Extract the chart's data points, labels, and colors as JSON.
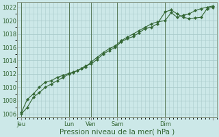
{
  "title": "Pression niveau de la mer( hPa )",
  "bg_color": "#cce8e8",
  "grid_color": "#aacccc",
  "line_color": "#336633",
  "ylim": [
    1005.5,
    1022.8
  ],
  "yticks": [
    1006,
    1008,
    1010,
    1012,
    1014,
    1016,
    1018,
    1020,
    1022
  ],
  "xlim": [
    0,
    100
  ],
  "xtick_positions": [
    2,
    26,
    37,
    50,
    74,
    98
  ],
  "xtick_labels": [
    "Jeu",
    "Lun",
    "Ven",
    "Sam",
    "Dim",
    ""
  ],
  "vline_positions": [
    2,
    26,
    37,
    50,
    74
  ],
  "series1_x": [
    2,
    5,
    8,
    11,
    14,
    17,
    20,
    23,
    26,
    28,
    30,
    32,
    34,
    37,
    40,
    43,
    46,
    49,
    52,
    55,
    58,
    61,
    64,
    67,
    70,
    74,
    77,
    80,
    83,
    86,
    89,
    92,
    95,
    98
  ],
  "series1_y": [
    1006.2,
    1008.2,
    1009.0,
    1010.0,
    1010.8,
    1011.0,
    1011.5,
    1011.8,
    1012.1,
    1012.3,
    1012.5,
    1012.8,
    1013.2,
    1013.5,
    1014.2,
    1015.0,
    1015.5,
    1016.0,
    1016.8,
    1017.3,
    1017.6,
    1018.2,
    1018.8,
    1019.0,
    1019.5,
    1021.3,
    1021.6,
    1021.0,
    1020.5,
    1020.3,
    1020.4,
    1020.5,
    1021.8,
    1022.0
  ],
  "series2_x": [
    2,
    5,
    8,
    11,
    14,
    17,
    20,
    23,
    26,
    28,
    30,
    32,
    34,
    37,
    40,
    43,
    46,
    49,
    52,
    55,
    58,
    61,
    64,
    67,
    70,
    74,
    77,
    80,
    83,
    86,
    89,
    92,
    95,
    98
  ],
  "series2_y": [
    1006.0,
    1007.0,
    1008.5,
    1009.2,
    1010.0,
    1010.5,
    1011.0,
    1011.5,
    1012.0,
    1012.2,
    1012.5,
    1012.8,
    1013.0,
    1013.8,
    1014.5,
    1015.2,
    1015.8,
    1016.2,
    1017.0,
    1017.5,
    1018.0,
    1018.5,
    1019.0,
    1019.5,
    1019.8,
    1020.0,
    1021.2,
    1020.5,
    1020.8,
    1021.0,
    1021.5,
    1021.8,
    1022.0,
    1022.2
  ],
  "marker": "D",
  "markersize": 2.2,
  "linewidth": 0.8,
  "tick_fontsize": 6,
  "xlabel_fontsize": 7.5,
  "figsize": [
    3.2,
    2.0
  ],
  "dpi": 100
}
